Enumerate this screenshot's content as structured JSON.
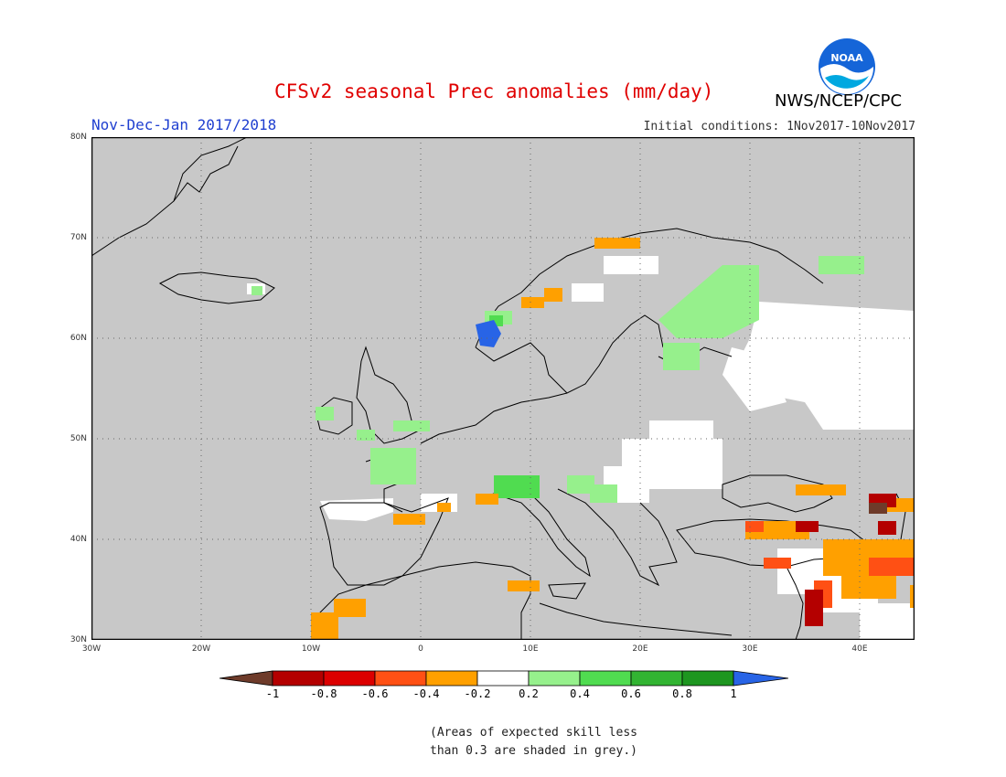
{
  "header": {
    "title": "CFSv2 seasonal Prec anomalies (mm/day)",
    "period": "Nov-Dec-Jan 2017/2018",
    "initial_conditions": "Initial conditions: 1Nov2017-10Nov2017",
    "agency": "NWS/NCEP/CPC",
    "logo_text": "NOAA"
  },
  "map": {
    "lat_labels": [
      "80N",
      "70N",
      "60N",
      "50N",
      "40N",
      "30N"
    ],
    "lon_labels": [
      "30W",
      "20W",
      "10W",
      "0",
      "10E",
      "20E",
      "30E",
      "40E"
    ],
    "colors": {
      "background": "#c8c8c8",
      "no_skill_grey": "#c8c8c8",
      "near_zero": "#ffffff",
      "dry_light": "#ff9f00",
      "dry_mid": "#e63c00",
      "dry_strong": "#c00000",
      "dry_extreme": "#6e3b2a",
      "wet_light": "#96f08c",
      "wet_mid": "#50dc50",
      "wet_strong": "#1ea01e",
      "wet_extreme": "#2864e6"
    }
  },
  "colorbar": {
    "labels": [
      "-1",
      "-0.8",
      "-0.6",
      "-0.4",
      "-0.2",
      "0.2",
      "0.4",
      "0.6",
      "0.8",
      "1"
    ],
    "colors": [
      "#6e3b2a",
      "#b40000",
      "#dc0000",
      "#ff5014",
      "#ffa000",
      "#ffffff",
      "#96f08c",
      "#50dc50",
      "#32b432",
      "#1e9620",
      "#2864e6"
    ]
  },
  "note": {
    "line1": "(Areas of expected skill less",
    "line2": "than 0.3 are shaded in grey.)"
  }
}
